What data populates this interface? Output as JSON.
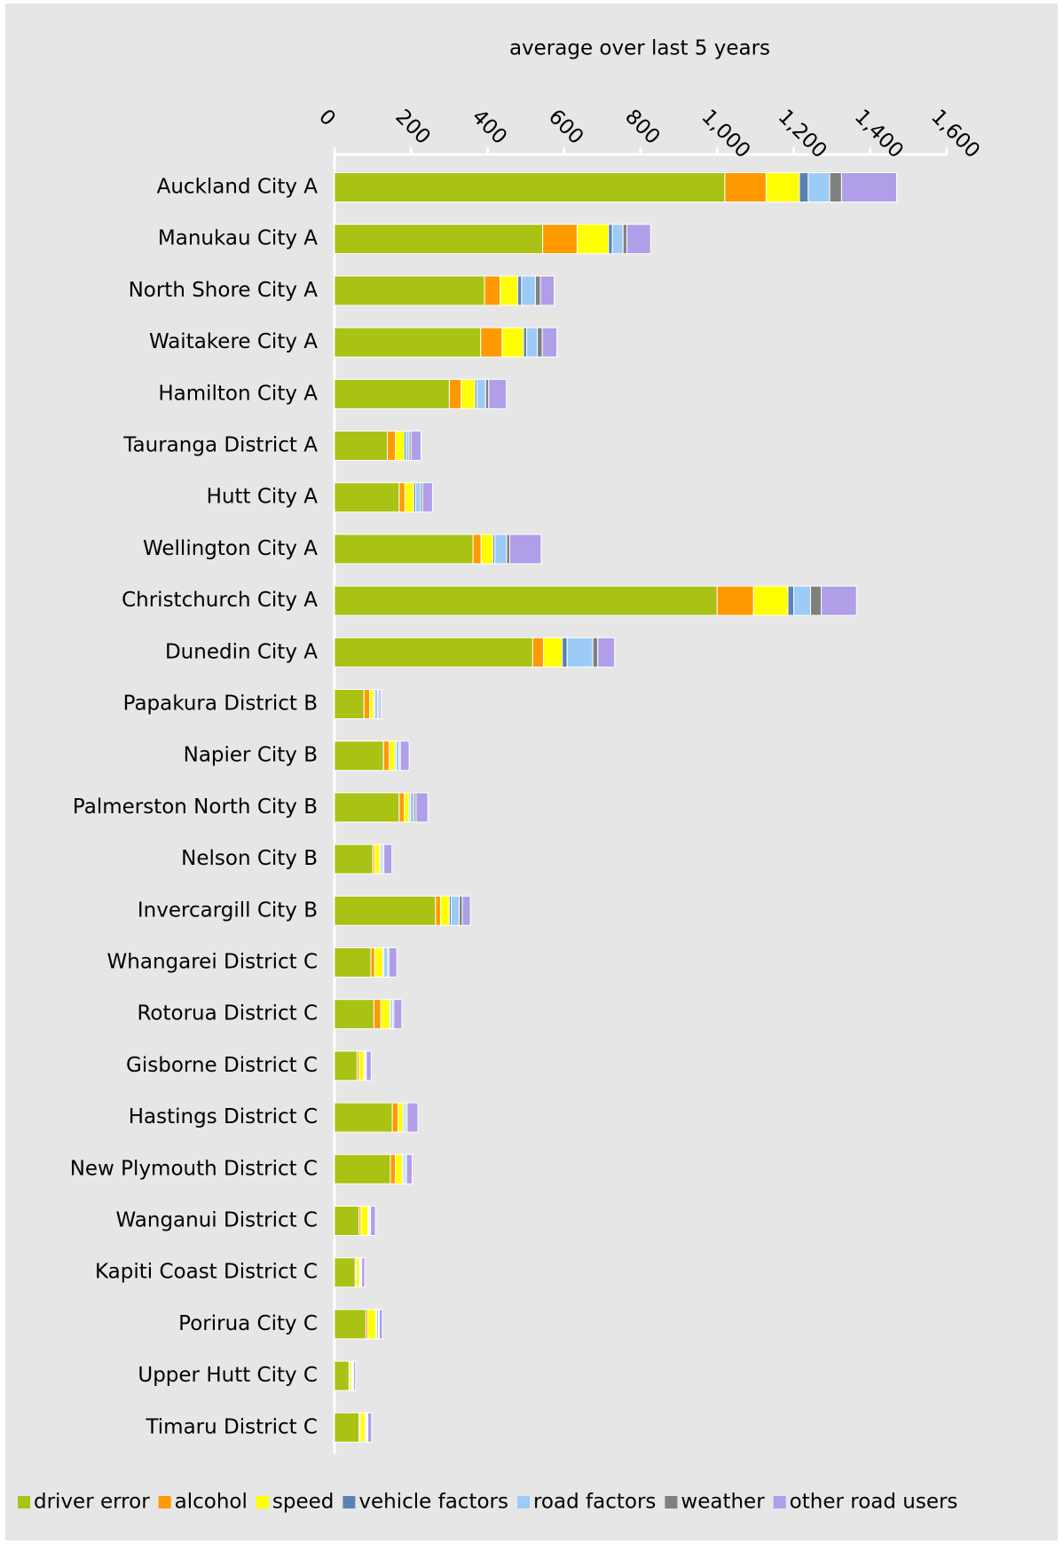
{
  "chart_data": {
    "type": "stacked-barh",
    "title": "average over last 5 years",
    "categories": [
      "Auckland City A",
      "Manukau City A",
      "North Shore City A",
      "Waitakere City A",
      "Hamilton City A",
      "Tauranga District A",
      "Hutt City A",
      "Wellington City A",
      "Christchurch City A",
      "Dunedin City A",
      "Papakura District B",
      "Napier City B",
      "Palmerston North City B",
      "Nelson City B",
      "Invercargill City B",
      "Whangarei District C",
      "Rotorua District C",
      "Gisborne District C",
      "Hastings District C",
      "New Plymouth District C",
      "Wanganui District C",
      "Kapiti Coast District C",
      "Porirua City C",
      "Upper Hutt City C",
      "Timaru District C"
    ],
    "series": [
      {
        "name": "driver error",
        "color": "#a9c214",
        "values": [
          1020,
          544,
          392,
          382,
          300,
          138,
          169,
          362,
          1000,
          518,
          77,
          128,
          169,
          100,
          264,
          95,
          103,
          59,
          151,
          146,
          64,
          54,
          82,
          38,
          64
        ]
      },
      {
        "name": "alcohol",
        "color": "#ff9900",
        "values": [
          108,
          90,
          41,
          56,
          31,
          21,
          15,
          21,
          95,
          28,
          15,
          15,
          13,
          5,
          13,
          10,
          18,
          5,
          15,
          13,
          5,
          3,
          5,
          2,
          3
        ]
      },
      {
        "name": "speed",
        "color": "#ffff00",
        "values": [
          87,
          82,
          46,
          56,
          36,
          23,
          23,
          31,
          90,
          49,
          10,
          15,
          13,
          13,
          23,
          21,
          23,
          13,
          13,
          18,
          18,
          8,
          21,
          5,
          13
        ]
      },
      {
        "name": "vehicle factors",
        "color": "#5b82b3",
        "values": [
          23,
          10,
          10,
          8,
          5,
          5,
          5,
          5,
          15,
          13,
          3,
          3,
          3,
          3,
          5,
          3,
          3,
          1,
          3,
          3,
          2,
          1,
          2,
          1,
          2
        ]
      },
      {
        "name": "road factors",
        "color": "#9dcbf7",
        "values": [
          56,
          28,
          36,
          28,
          23,
          8,
          13,
          31,
          44,
          67,
          8,
          8,
          10,
          5,
          21,
          10,
          5,
          3,
          5,
          5,
          3,
          3,
          5,
          2,
          3
        ]
      },
      {
        "name": "weather",
        "color": "#808080",
        "values": [
          31,
          10,
          13,
          13,
          8,
          5,
          5,
          8,
          28,
          13,
          3,
          3,
          5,
          3,
          8,
          3,
          3,
          2,
          3,
          3,
          2,
          2,
          2,
          2,
          2
        ]
      },
      {
        "name": "other road users",
        "color": "#b09ee8",
        "values": [
          144,
          62,
          36,
          38,
          46,
          26,
          26,
          82,
          92,
          44,
          5,
          23,
          31,
          21,
          21,
          21,
          21,
          13,
          28,
          15,
          13,
          8,
          8,
          5,
          10
        ]
      }
    ],
    "xlim": [
      0,
      1600
    ],
    "xticks": [
      0,
      200,
      400,
      600,
      800,
      {
        "value": 1000,
        "label": "1,000"
      },
      {
        "value": 1200,
        "label": "1,200"
      },
      {
        "value": 1400,
        "label": "1,400"
      },
      {
        "value": 1600,
        "label": "1,600"
      }
    ]
  }
}
